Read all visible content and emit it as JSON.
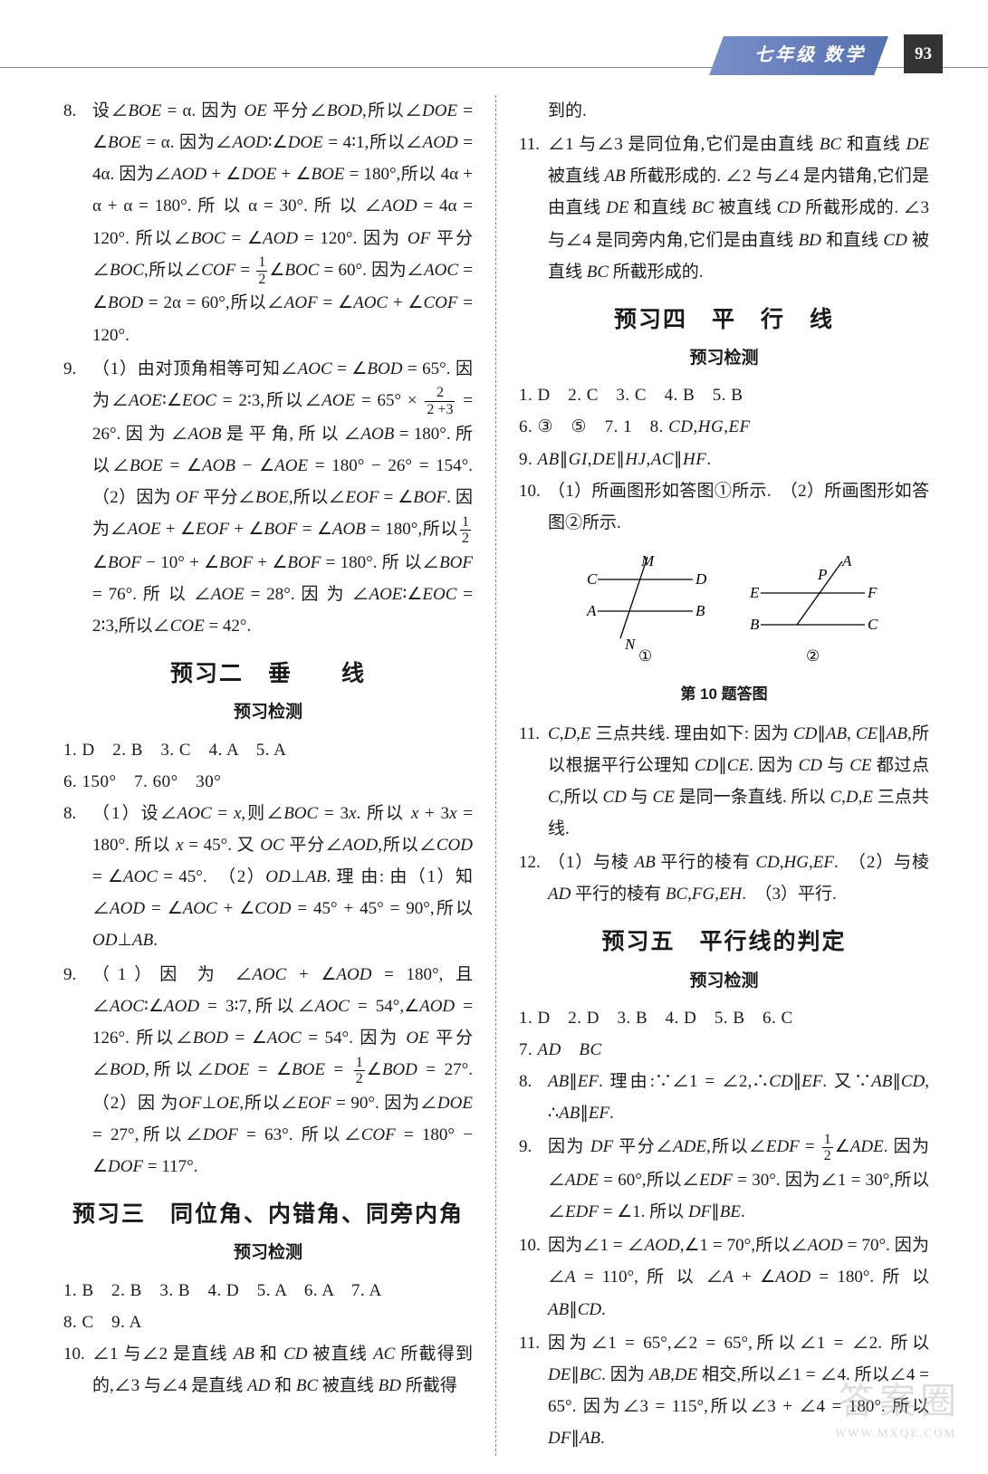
{
  "header": {
    "subject": "七年级   数学",
    "page": "93"
  },
  "left": {
    "q8": "设∠<span class='it'>BOE</span> = α. 因为 <span class='it'>OE</span> 平分∠<span class='it'>BOD</span>,所以∠<span class='it'>DOE</span> = ∠<span class='it'>BOE</span> = α. 因为∠<span class='it'>AOD</span>∶∠<span class='it'>DOE</span> = 4∶1,所以∠<span class='it'>AOD</span> = 4α. 因为∠<span class='it'>AOD</span> + ∠<span class='it'>DOE</span> + ∠<span class='it'>BOE</span> = 180°,所以 4α + α + α = 180°.  所 以 α = 30°. 所 以 ∠<span class='it'>AOD</span> = 4α = 120°. 所以∠<span class='it'>BOC</span> = ∠<span class='it'>AOD</span> = 120°. 因为 <span class='it'>OF</span> 平分∠<span class='it'>BOC</span>,所以∠<span class='it'>COF</span> = <span class='frac'><span class='n'>1</span><span class='d'>2</span></span>∠<span class='it'>BOC</span> = 60°. 因为∠<span class='it'>AOC</span> = ∠<span class='it'>BOD</span> = 2α = 60°,所以∠<span class='it'>AOF</span> = ∠<span class='it'>AOC</span> + ∠<span class='it'>COF</span> = 120°.",
    "q9": "（1）由对顶角相等可知∠<span class='it'>AOC</span> = ∠<span class='it'>BOD</span> = 65°. 因为∠<span class='it'>AOE</span>∶∠<span class='it'>EOC</span> = 2∶3,所以∠<span class='it'>AOE</span> = 65° × <span class='frac'><span class='n'>2</span><span class='d'>2 +3</span></span> = 26°. 因 为 ∠<span class='it'>AOB</span> 是 平 角, 所 以 ∠<span class='it'>AOB</span> = 180°. 所 以∠<span class='it'>BOE</span> = ∠<span class='it'>AOB</span> − ∠<span class='it'>AOE</span> = 180° − 26° = 154°. （2）因为 <span class='it'>OF</span> 平分∠<span class='it'>BOE</span>,所以∠<span class='it'>EOF</span> = ∠<span class='it'>BOF</span>. 因为∠<span class='it'>AOE</span> + ∠<span class='it'>EOF</span> + ∠<span class='it'>BOF</span> = ∠<span class='it'>AOB</span> = 180°,所以<span class='frac'><span class='n'>1</span><span class='d'>2</span></span>∠<span class='it'>BOF</span> − 10° + ∠<span class='it'>BOF</span> + ∠<span class='it'>BOF</span> = 180°. 所 以∠<span class='it'>BOF</span> = 76°. 所 以 ∠<span class='it'>AOE</span> = 28°. 因 为 ∠<span class='it'>AOE</span>∶∠<span class='it'>EOC</span> = 2∶3,所以∠<span class='it'>COE</span> = 42°.",
    "sec2_title": "预习二　垂　　线",
    "sec2_sub": "预习检测",
    "sec2_a1": "1. D　2. B　3. C　4. A　5. A",
    "sec2_a2": "6. 150°　7. 60°　30°",
    "sec2_q8": "（1）设∠<span class='it'>AOC</span> = <span class='it'>x</span>,则∠<span class='it'>BOC</span> = 3<span class='it'>x</span>. 所以 <span class='it'>x</span> + 3<span class='it'>x</span> = 180°. 所以 <span class='it'>x</span> = 45°. 又 <span class='it'>OC</span> 平分∠<span class='it'>AOD</span>,所以∠<span class='it'>COD</span> = ∠<span class='it'>AOC</span> = 45°.　（2）<span class='it'>OD</span>⊥<span class='it'>AB</span>. 理 由: 由（1）知 ∠<span class='it'>AOD</span> = ∠<span class='it'>AOC</span> + ∠<span class='it'>COD</span> = 45° + 45° = 90°,所以 <span class='it'>OD</span>⊥<span class='it'>AB</span>.",
    "sec2_q9": "（1）因 为 ∠<span class='it'>AOC</span> + ∠<span class='it'>AOD</span> = 180°, 且 ∠<span class='it'>AOC</span>∶∠<span class='it'>AOD</span> = 3∶7,所以∠<span class='it'>AOC</span> = 54°,∠<span class='it'>AOD</span> = 126°. 所以∠<span class='it'>BOD</span> = ∠<span class='it'>AOC</span> = 54°. 因为 <span class='it'>OE</span> 平分∠<span class='it'>BOD</span>,所以∠<span class='it'>DOE</span> = ∠<span class='it'>BOE</span> = <span class='frac'><span class='n'>1</span><span class='d'>2</span></span>∠<span class='it'>BOD</span> = 27°.　（2）因 为<span class='it'>OF</span>⊥<span class='it'>OE</span>,所以∠<span class='it'>EOF</span> = 90°. 因为∠<span class='it'>DOE</span> = 27°,所以∠<span class='it'>DOF</span> = 63°. 所以∠<span class='it'>COF</span> = 180° − ∠<span class='it'>DOF</span> = 117°.",
    "sec3_title": "预习三　同位角、内错角、同旁内角",
    "sec3_sub": "预习检测",
    "sec3_a1": "1. B　2. B　3. B　4. D　5. A　6. A　7. A",
    "sec3_a2": "8. C　9. A",
    "sec3_q10": "∠1 与∠2 是直线 <span class='it'>AB</span> 和 <span class='it'>CD</span> 被直线 <span class='it'>AC</span> 所截得到的,∠3 与∠4 是直线 <span class='it'>AD</span> 和 <span class='it'>BC</span> 被直线 <span class='it'>BD</span> 所截得"
  },
  "right": {
    "cont10": "到的.",
    "q11": "∠1 与∠3 是同位角,它们是由直线 <span class='it'>BC</span> 和直线 <span class='it'>DE</span> 被直线 <span class='it'>AB</span> 所截形成的. ∠2 与∠4 是内错角,它们是由直线 <span class='it'>DE</span> 和直线 <span class='it'>BC</span> 被直线 <span class='it'>CD</span> 所截形成的. ∠3 与∠4 是同旁内角,它们是由直线 <span class='it'>BD</span> 和直线 <span class='it'>CD</span> 被直线 <span class='it'>BC</span> 所截形成的.",
    "sec4_title": "预习四　平　行　线",
    "sec4_sub": "预习检测",
    "sec4_a1": "1. D　2. C　3. C　4. B　5. B",
    "sec4_a2": "6. ③　⑤　7. 1　8. <span class='it'>CD</span>,<span class='it'>HG</span>,<span class='it'>EF</span>",
    "sec4_a3": "9. <span class='it'>AB</span>∥<span class='it'>GI</span>,<span class='it'>DE</span>∥<span class='it'>HJ</span>,<span class='it'>AC</span>∥<span class='it'>HF</span>.",
    "sec4_q10": "（1）所画图形如答图①所示.　（2）所画图形如答图②所示.",
    "diagram_caption": "第 10 题答图",
    "diagram": {
      "labels1": {
        "C": "C",
        "M": "M",
        "D": "D",
        "A": "A",
        "B": "B",
        "N": "N",
        "num": "①"
      },
      "labels2": {
        "A": "A",
        "P": "P",
        "E": "E",
        "F": "F",
        "B": "B",
        "C": "C",
        "num": "②"
      }
    },
    "sec4_q11": "<span class='it'>C</span>,<span class='it'>D</span>,<span class='it'>E</span> 三点共线. 理由如下: 因为 <span class='it'>CD</span>∥<span class='it'>AB</span>, <span class='it'>CE</span>∥<span class='it'>AB</span>,所以根据平行公理知 <span class='it'>CD</span>∥<span class='it'>CE</span>. 因为 <span class='it'>CD</span> 与 <span class='it'>CE</span> 都过点 <span class='it'>C</span>,所以 <span class='it'>CD</span> 与 <span class='it'>CE</span> 是同一条直线. 所以 <span class='it'>C</span>,<span class='it'>D</span>,<span class='it'>E</span> 三点共线.",
    "sec4_q12": "（1）与棱 <span class='it'>AB</span> 平行的棱有 <span class='it'>CD</span>,<span class='it'>HG</span>,<span class='it'>EF</span>.　（2）与棱 <span class='it'>AD</span> 平行的棱有 <span class='it'>BC</span>,<span class='it'>FG</span>,<span class='it'>EH</span>.　（3）平行.",
    "sec5_title": "预习五　平行线的判定",
    "sec5_sub": "预习检测",
    "sec5_a1": "1. D　2. D　3. B　4. D　5. B　6. C",
    "sec5_a2": "7. <span class='it'>AD</span>　<span class='it'>BC</span>",
    "sec5_q8": "<span class='it'>AB</span>∥<span class='it'>EF</span>. 理由:∵∠1 = ∠2,∴<span class='it'>CD</span>∥<span class='it'>EF</span>. 又∵<span class='it'>AB</span>∥<span class='it'>CD</span>, ∴<span class='it'>AB</span>∥<span class='it'>EF</span>.",
    "sec5_q9": "因为 <span class='it'>DF</span> 平分∠<span class='it'>ADE</span>,所以∠<span class='it'>EDF</span> = <span class='frac'><span class='n'>1</span><span class='d'>2</span></span>∠<span class='it'>ADE</span>. 因为∠<span class='it'>ADE</span> = 60°,所以∠<span class='it'>EDF</span> = 30°. 因为∠1 = 30°,所以∠<span class='it'>EDF</span> = ∠1. 所以 <span class='it'>DF</span>∥<span class='it'>BE</span>.",
    "sec5_q10": "因为∠1 = ∠<span class='it'>AOD</span>,∠1 = 70°,所以∠<span class='it'>AOD</span> = 70°. 因为∠<span class='it'>A</span> = 110°, 所 以 ∠<span class='it'>A</span> + ∠<span class='it'>AOD</span> = 180°. 所 以 <span class='it'>AB</span>∥<span class='it'>CD</span>.",
    "sec5_q11": "因为∠1 = 65°,∠2 = 65°,所以∠1 = ∠2. 所以 <span class='it'>DE</span>∥<span class='it'>BC</span>. 因为 <span class='it'>AB</span>,<span class='it'>DE</span> 相交,所以∠1 = ∠4. 所以∠4 = 65°. 因为∠3 = 115°,所以∠3 + ∠4 = 180°. 所以<span class='it'>DF</span>∥<span class='it'>AB</span>."
  },
  "watermark": {
    "main": "答案圈",
    "sub": "WWW.MXQE.COM"
  }
}
